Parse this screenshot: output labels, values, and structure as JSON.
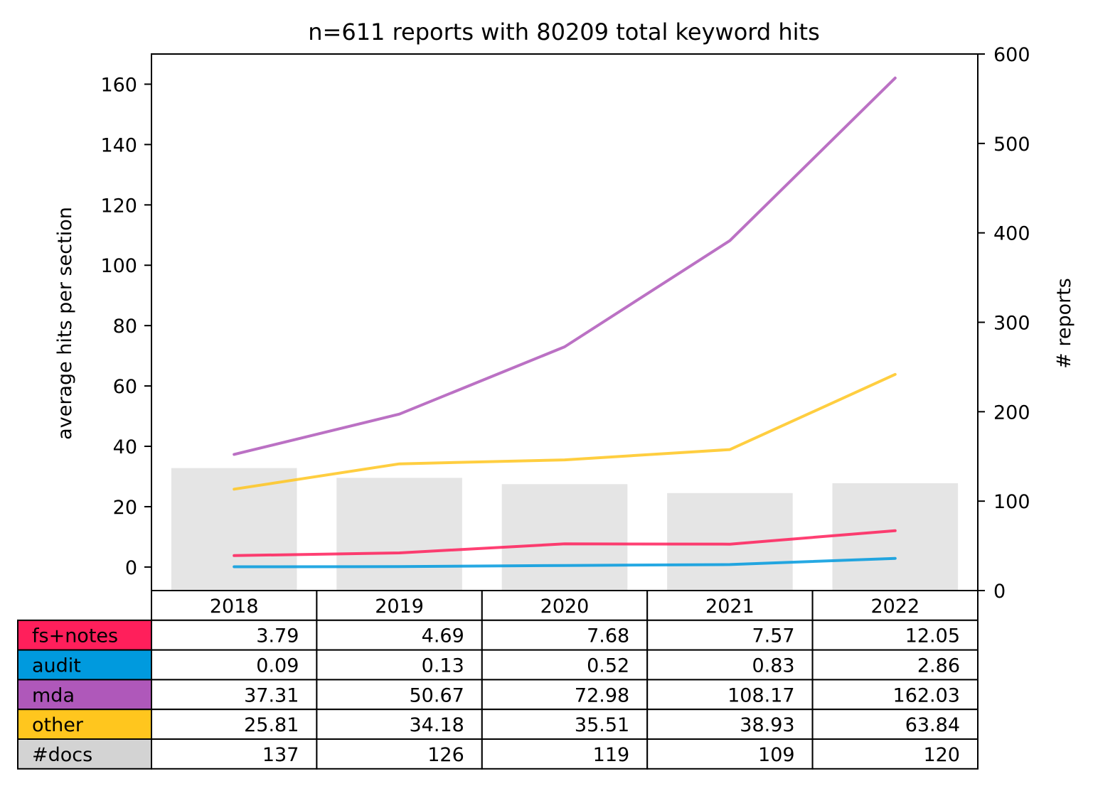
{
  "chart_data": {
    "type": "line",
    "title": "n=611 reports with 80209 total keyword hits",
    "ylabel": "average hits per section",
    "y2label": "# reports",
    "categories": [
      "2018",
      "2019",
      "2020",
      "2021",
      "2022"
    ],
    "ylim": [
      -7.8,
      170
    ],
    "y2lim": [
      0,
      600
    ],
    "yticks": [
      0,
      20,
      40,
      60,
      80,
      100,
      120,
      140,
      160
    ],
    "y2ticks": [
      0,
      100,
      200,
      300,
      400,
      500,
      600
    ],
    "series": [
      {
        "name": "fs+notes",
        "color": "#ff1f5b",
        "values": [
          3.79,
          4.69,
          7.68,
          7.57,
          12.05
        ],
        "labels": [
          "3.79",
          "4.69",
          "7.68",
          "7.57",
          "12.05"
        ]
      },
      {
        "name": "audit",
        "color": "#009ade",
        "values": [
          0.09,
          0.13,
          0.52,
          0.83,
          2.86
        ],
        "labels": [
          "0.09",
          "0.13",
          "0.52",
          "0.83",
          "2.86"
        ]
      },
      {
        "name": "mda",
        "color": "#af58ba",
        "values": [
          37.31,
          50.67,
          72.98,
          108.17,
          162.03
        ],
        "labels": [
          "37.31",
          "50.67",
          "72.98",
          "108.17",
          "162.03"
        ]
      },
      {
        "name": "other",
        "color": "#ffc61e",
        "values": [
          25.81,
          34.18,
          35.51,
          38.93,
          63.84
        ],
        "labels": [
          "25.81",
          "34.18",
          "35.51",
          "38.93",
          "63.84"
        ]
      }
    ],
    "bars": {
      "name": "#docs",
      "color": "#d3d3d3",
      "axis": "right",
      "values": [
        137,
        126,
        119,
        109,
        120
      ],
      "labels": [
        "137",
        "126",
        "119",
        "109",
        "120"
      ]
    },
    "legend": "table-below",
    "grid": false
  }
}
